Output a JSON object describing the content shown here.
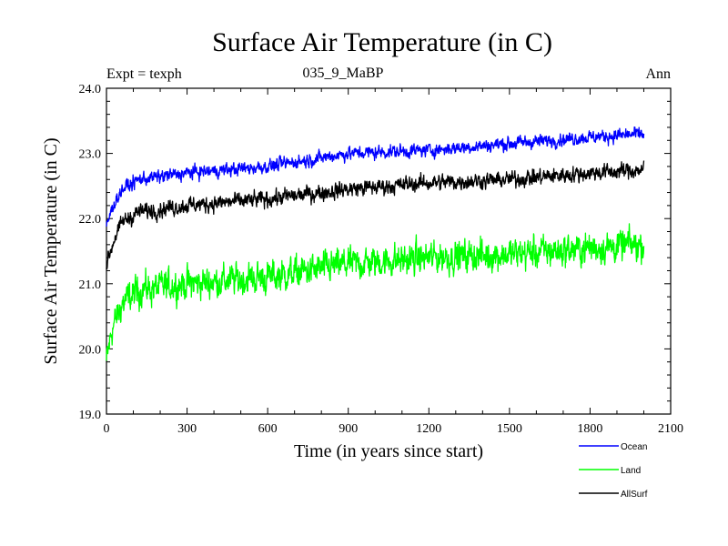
{
  "chart_data": {
    "type": "line",
    "title": "Surface Air Temperature (in C)",
    "subtitle_left": "Expt = texph",
    "subtitle_center": "035_9_MaBP",
    "subtitle_right": "Ann",
    "xlabel": "Time (in years since start)",
    "ylabel": "Surface Air Temperature (in C)",
    "xlim": [
      0,
      2100
    ],
    "ylim": [
      19.0,
      24.0
    ],
    "x_ticks": [
      0,
      300,
      600,
      900,
      1200,
      1500,
      1800,
      2100
    ],
    "x_tick_labels": [
      "0",
      "300",
      "600",
      "900",
      "1200",
      "1500",
      "1800",
      "2100"
    ],
    "y_ticks": [
      19.0,
      20.0,
      21.0,
      22.0,
      23.0,
      24.0
    ],
    "y_tick_labels": [
      "19.0",
      "20.0",
      "21.0",
      "22.0",
      "23.0",
      "24.0"
    ],
    "x_range": [
      0,
      2000
    ],
    "series": [
      {
        "name": "Ocean",
        "color": "#0000ff",
        "noise": 0.09,
        "trend": [
          [
            0,
            21.9
          ],
          [
            30,
            22.25
          ],
          [
            60,
            22.45
          ],
          [
            120,
            22.6
          ],
          [
            300,
            22.7
          ],
          [
            600,
            22.8
          ],
          [
            900,
            23.0
          ],
          [
            1200,
            23.05
          ],
          [
            1500,
            23.15
          ],
          [
            1800,
            23.25
          ],
          [
            2000,
            23.3
          ]
        ]
      },
      {
        "name": "Land",
        "color": "#00ff00",
        "noise": 0.22,
        "trend": [
          [
            0,
            19.8
          ],
          [
            20,
            20.3
          ],
          [
            60,
            20.7
          ],
          [
            120,
            20.9
          ],
          [
            300,
            21.0
          ],
          [
            600,
            21.1
          ],
          [
            900,
            21.3
          ],
          [
            1200,
            21.4
          ],
          [
            1500,
            21.45
          ],
          [
            1800,
            21.55
          ],
          [
            2000,
            21.6
          ]
        ]
      },
      {
        "name": "AllSurf",
        "color": "#000000",
        "noise": 0.11,
        "trend": [
          [
            0,
            21.3
          ],
          [
            30,
            21.7
          ],
          [
            60,
            21.95
          ],
          [
            120,
            22.1
          ],
          [
            300,
            22.2
          ],
          [
            600,
            22.3
          ],
          [
            900,
            22.45
          ],
          [
            1200,
            22.55
          ],
          [
            1500,
            22.6
          ],
          [
            1800,
            22.7
          ],
          [
            2000,
            22.75
          ]
        ]
      }
    ]
  }
}
